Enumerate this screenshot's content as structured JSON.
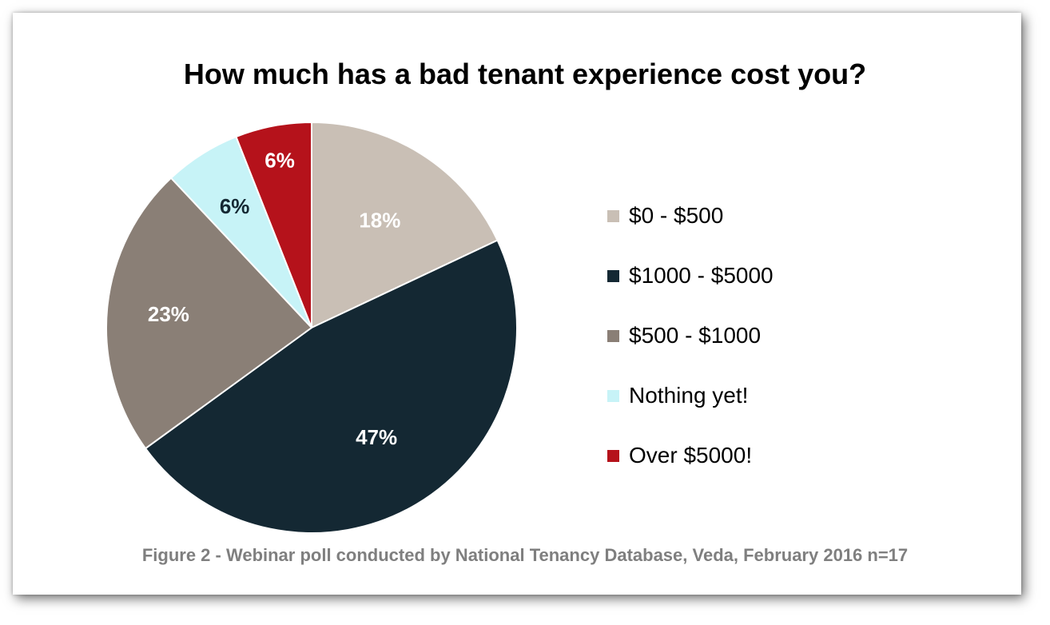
{
  "chart_data": {
    "type": "pie",
    "title": "How much has a bad tenant experience cost you?",
    "caption": "Figure 2 - Webinar poll conducted by National Tenancy Database, Veda, February 2016 n=17",
    "legend_position": "right",
    "slices": [
      {
        "label": "$0 - $500",
        "value": 18,
        "display": "18%",
        "color": "#c9bfb5",
        "label_color": "#ffffff"
      },
      {
        "label": "$1000 - $5000",
        "value": 47,
        "display": "47%",
        "color": "#142833",
        "label_color": "#ffffff"
      },
      {
        "label": "$500 - $1000",
        "value": 23,
        "display": "23%",
        "color": "#8a7f76",
        "label_color": "#ffffff"
      },
      {
        "label": "Nothing yet!",
        "value": 6,
        "display": "6%",
        "color": "#c7f3f7",
        "label_color": "#142833"
      },
      {
        "label": "Over $5000!",
        "value": 6,
        "display": "6%",
        "color": "#b5121b",
        "label_color": "#ffffff"
      }
    ]
  }
}
